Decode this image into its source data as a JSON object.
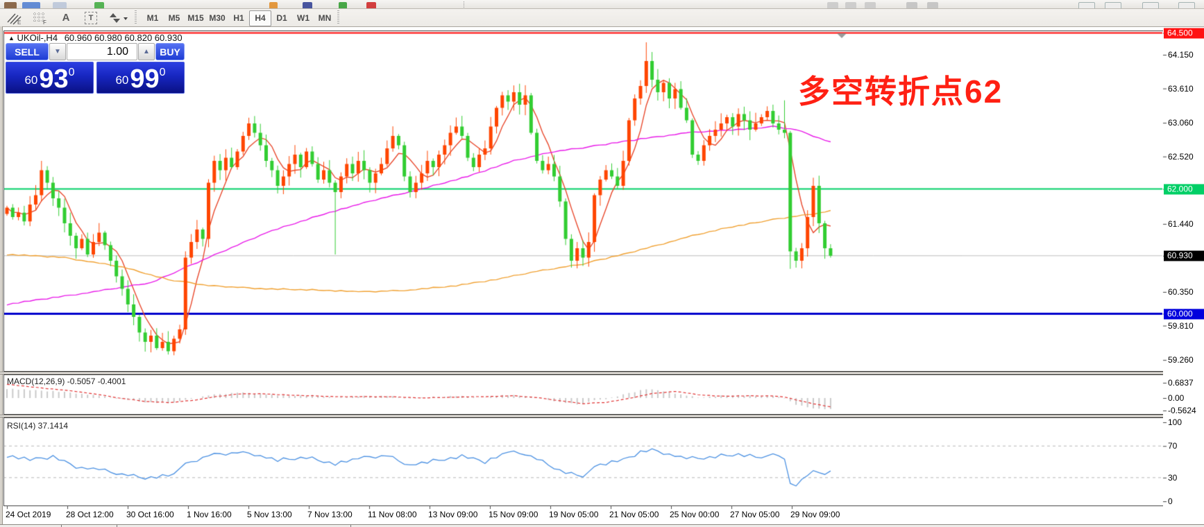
{
  "toolbar": {
    "tools": [
      {
        "name": "elliott-lines-icon"
      },
      {
        "name": "fibo-grid-icon"
      },
      {
        "name": "text-label-icon",
        "glyph": "A"
      },
      {
        "name": "text-box-icon",
        "glyph": "T"
      },
      {
        "name": "arrows-icon"
      }
    ],
    "timeframes": [
      "M1",
      "M5",
      "M15",
      "M30",
      "H1",
      "H4",
      "D1",
      "W1",
      "MN"
    ],
    "active_timeframe": "H4"
  },
  "chart": {
    "marker": "▲",
    "title": "UKOil-,H4",
    "ohlc_text": "60.960 60.980 60.820 60.930",
    "annotation": "多空转折点62",
    "annotation_color": "#ff2013",
    "trade_panel": {
      "sell_label": "SELL",
      "buy_label": "BUY",
      "volume": "1.00",
      "spin_down": "▼",
      "spin_up": "▲",
      "sell_price_small": "60",
      "sell_price_big": "93",
      "sell_price_sup": "0",
      "buy_price_small": "60",
      "buy_price_big": "99",
      "buy_price_sup": "0"
    },
    "indicator_labels": {
      "macd": "MACD(12,26,9) -0.5057 -0.4001",
      "rsi": "RSI(14) 37.1414"
    }
  },
  "chart_data": {
    "type": "candlestick",
    "symbol": "UKOil-",
    "timeframe": "H4",
    "ohlc_display": {
      "open": 60.96,
      "high": 60.98,
      "low": 60.82,
      "close": 60.93
    },
    "up_color": "#ff4500",
    "down_color": "#32cd32",
    "first_open": 61.6,
    "closes": [
      61.7,
      61.55,
      61.62,
      61.48,
      61.75,
      61.9,
      62.3,
      62.1,
      61.85,
      61.7,
      61.45,
      61.25,
      61.05,
      61.2,
      60.95,
      61.15,
      61.3,
      61.1,
      60.85,
      60.6,
      60.4,
      60.15,
      59.95,
      59.7,
      59.55,
      59.65,
      59.45,
      59.55,
      59.4,
      59.6,
      59.75,
      60.9,
      61.15,
      61.35,
      61.2,
      62.1,
      62.45,
      62.3,
      62.5,
      62.35,
      62.6,
      62.85,
      63.05,
      62.9,
      62.7,
      62.45,
      62.3,
      62.05,
      62.2,
      62.4,
      62.55,
      62.35,
      62.6,
      62.4,
      62.15,
      62.3,
      62.1,
      61.95,
      62.2,
      62.4,
      62.25,
      62.45,
      62.3,
      62.1,
      62.25,
      62.4,
      62.65,
      62.85,
      62.7,
      62.2,
      61.95,
      62.1,
      62.25,
      62.45,
      62.35,
      62.55,
      62.7,
      62.9,
      63.0,
      62.85,
      62.5,
      62.35,
      62.55,
      62.65,
      63.0,
      63.3,
      63.5,
      63.4,
      63.55,
      63.35,
      63.5,
      62.9,
      62.45,
      62.3,
      62.4,
      62.2,
      61.8,
      61.2,
      60.85,
      61.05,
      60.9,
      61.15,
      61.9,
      62.15,
      62.3,
      62.2,
      62.05,
      62.45,
      63.1,
      63.45,
      63.65,
      64.05,
      63.75,
      63.55,
      63.7,
      63.45,
      63.6,
      63.3,
      63.1,
      62.55,
      62.45,
      62.7,
      62.85,
      62.95,
      63.05,
      63.15,
      63.0,
      63.2,
      63.1,
      62.95,
      63.05,
      63.15,
      63.25,
      63.05,
      62.95,
      62.9,
      61.0,
      60.85,
      61.05,
      61.55,
      62.05,
      61.45,
      61.05,
      60.93
    ],
    "wick_overrides": {
      "6": {
        "h": 62.45
      },
      "57": {
        "l": 60.95
      },
      "111": {
        "h": 64.35
      },
      "135": {
        "h": 63.42
      },
      "136": {
        "l": 60.72
      },
      "140": {
        "h": 62.18
      }
    },
    "h_lines": [
      {
        "price": 64.5,
        "color": "#ff0000",
        "width": 2
      },
      {
        "price": 62.0,
        "color": "#00cf66",
        "width": 2
      },
      {
        "price": 60.93,
        "color": "#bdbdbd",
        "width": 1
      },
      {
        "price": 60.0,
        "color": "#0000cc",
        "width": 3
      }
    ],
    "price_ticks": [
      {
        "label": "64.500",
        "price": 64.5,
        "badge": "#ff1212"
      },
      {
        "label": "64.150",
        "price": 64.15
      },
      {
        "label": "63.610",
        "price": 63.61
      },
      {
        "label": "63.060",
        "price": 63.06
      },
      {
        "label": "62.520",
        "price": 62.52
      },
      {
        "label": "62.000",
        "price": 62.0,
        "badge": "#00cf66"
      },
      {
        "label": "61.440",
        "price": 61.44
      },
      {
        "label": "60.930",
        "price": 60.93,
        "badge": "#000000"
      },
      {
        "label": "60.350",
        "price": 60.35
      },
      {
        "label": "60.000",
        "price": 60.0,
        "badge": "#0000dd"
      },
      {
        "label": "59.810",
        "price": 59.81
      },
      {
        "label": "59.260",
        "price": 59.26
      }
    ],
    "ma_lines": [
      {
        "name": "ma-fast",
        "color": "#e8482c",
        "mode": "sma",
        "period": 5
      },
      {
        "name": "ma-mid",
        "color": "#e818e8",
        "mode": "points",
        "points": [
          [
            0,
            60.15
          ],
          [
            15,
            60.35
          ],
          [
            25,
            60.5
          ],
          [
            35,
            60.9
          ],
          [
            45,
            61.3
          ],
          [
            55,
            61.6
          ],
          [
            65,
            61.85
          ],
          [
            72,
            62.0
          ],
          [
            80,
            62.2
          ],
          [
            88,
            62.45
          ],
          [
            95,
            62.6
          ],
          [
            103,
            62.7
          ],
          [
            110,
            62.8
          ],
          [
            118,
            62.9
          ],
          [
            126,
            62.95
          ],
          [
            133,
            63.0
          ],
          [
            137,
            62.95
          ],
          [
            140,
            62.85
          ],
          [
            143,
            62.75
          ]
        ]
      },
      {
        "name": "ma-slow",
        "color": "#f0a030",
        "mode": "points",
        "points": [
          [
            0,
            60.95
          ],
          [
            10,
            60.9
          ],
          [
            20,
            60.75
          ],
          [
            28,
            60.55
          ],
          [
            35,
            60.45
          ],
          [
            45,
            60.4
          ],
          [
            55,
            60.38
          ],
          [
            62,
            60.35
          ],
          [
            70,
            60.38
          ],
          [
            78,
            60.45
          ],
          [
            85,
            60.55
          ],
          [
            92,
            60.68
          ],
          [
            100,
            60.8
          ],
          [
            107,
            60.95
          ],
          [
            113,
            61.1
          ],
          [
            119,
            61.25
          ],
          [
            125,
            61.38
          ],
          [
            131,
            61.48
          ],
          [
            136,
            61.55
          ],
          [
            140,
            61.6
          ],
          [
            143,
            61.65
          ]
        ]
      }
    ],
    "macd": {
      "params": "12,26,9",
      "value": -0.5057,
      "signal_value": -0.4001,
      "axis": [
        {
          "label": "0.6837",
          "value": 0.6837
        },
        {
          "label": "0.00",
          "value": 0
        },
        {
          "label": "-0.5624",
          "value": -0.5624
        }
      ],
      "hist_keypoints": [
        [
          0,
          0.42
        ],
        [
          4,
          0.35
        ],
        [
          8,
          0.3
        ],
        [
          12,
          0.22
        ],
        [
          16,
          0.1
        ],
        [
          20,
          -0.05
        ],
        [
          24,
          -0.18
        ],
        [
          28,
          -0.22
        ],
        [
          31,
          -0.1
        ],
        [
          35,
          0.12
        ],
        [
          40,
          0.25
        ],
        [
          44,
          0.2
        ],
        [
          48,
          0.1
        ],
        [
          53,
          0.12
        ],
        [
          57,
          0.02
        ],
        [
          62,
          0.08
        ],
        [
          66,
          0.1
        ],
        [
          70,
          -0.02
        ],
        [
          74,
          0.04
        ],
        [
          78,
          0.1
        ],
        [
          82,
          0.0
        ],
        [
          86,
          0.12
        ],
        [
          90,
          0.1
        ],
        [
          93,
          -0.02
        ],
        [
          96,
          -0.18
        ],
        [
          99,
          -0.28
        ],
        [
          102,
          -0.12
        ],
        [
          105,
          0.0
        ],
        [
          108,
          0.22
        ],
        [
          111,
          0.4
        ],
        [
          114,
          0.32
        ],
        [
          117,
          0.15
        ],
        [
          120,
          0.02
        ],
        [
          123,
          0.08
        ],
        [
          126,
          0.14
        ],
        [
          129,
          0.1
        ],
        [
          132,
          0.1
        ],
        [
          135,
          0.0
        ],
        [
          137,
          -0.3
        ],
        [
          139,
          -0.42
        ],
        [
          141,
          -0.48
        ],
        [
          143,
          -0.5057
        ]
      ],
      "signal_keypoints": [
        [
          0,
          0.62
        ],
        [
          4,
          0.5
        ],
        [
          8,
          0.4
        ],
        [
          12,
          0.3
        ],
        [
          16,
          0.15
        ],
        [
          20,
          -0.02
        ],
        [
          24,
          -0.15
        ],
        [
          28,
          -0.2
        ],
        [
          32,
          -0.12
        ],
        [
          36,
          0.05
        ],
        [
          40,
          0.18
        ],
        [
          44,
          0.2
        ],
        [
          48,
          0.14
        ],
        [
          53,
          0.1
        ],
        [
          58,
          0.06
        ],
        [
          63,
          0.06
        ],
        [
          68,
          0.05
        ],
        [
          72,
          0.0
        ],
        [
          76,
          0.03
        ],
        [
          80,
          0.05
        ],
        [
          84,
          0.07
        ],
        [
          88,
          0.1
        ],
        [
          92,
          0.02
        ],
        [
          96,
          -0.12
        ],
        [
          100,
          -0.25
        ],
        [
          104,
          -0.2
        ],
        [
          108,
          -0.02
        ],
        [
          112,
          0.2
        ],
        [
          116,
          0.3
        ],
        [
          120,
          0.15
        ],
        [
          124,
          0.08
        ],
        [
          128,
          0.1
        ],
        [
          132,
          0.1
        ],
        [
          135,
          0.05
        ],
        [
          138,
          -0.15
        ],
        [
          141,
          -0.3
        ],
        [
          143,
          -0.4001
        ]
      ]
    },
    "rsi": {
      "period": 14,
      "value": 37.1414,
      "levels": [
        70,
        30
      ],
      "axis": [
        {
          "label": "100",
          "value": 100
        },
        {
          "label": "70",
          "value": 70
        },
        {
          "label": "30",
          "value": 30
        },
        {
          "label": "0",
          "value": 0
        }
      ],
      "keypoints": [
        [
          0,
          58
        ],
        [
          4,
          52
        ],
        [
          8,
          56
        ],
        [
          12,
          44
        ],
        [
          16,
          40
        ],
        [
          20,
          34
        ],
        [
          24,
          30
        ],
        [
          28,
          33
        ],
        [
          31,
          46
        ],
        [
          35,
          58
        ],
        [
          40,
          62
        ],
        [
          43,
          60
        ],
        [
          47,
          52
        ],
        [
          52,
          56
        ],
        [
          57,
          48
        ],
        [
          61,
          54
        ],
        [
          66,
          58
        ],
        [
          70,
          46
        ],
        [
          75,
          52
        ],
        [
          79,
          57
        ],
        [
          83,
          50
        ],
        [
          87,
          62
        ],
        [
          90,
          60
        ],
        [
          93,
          50
        ],
        [
          97,
          36
        ],
        [
          100,
          33
        ],
        [
          103,
          46
        ],
        [
          107,
          52
        ],
        [
          110,
          62
        ],
        [
          112,
          65
        ],
        [
          115,
          60
        ],
        [
          118,
          54
        ],
        [
          121,
          55
        ],
        [
          124,
          58
        ],
        [
          127,
          60
        ],
        [
          130,
          57
        ],
        [
          133,
          58
        ],
        [
          135,
          55
        ],
        [
          136,
          22
        ],
        [
          137,
          20
        ],
        [
          138,
          26
        ],
        [
          139,
          32
        ],
        [
          140,
          41
        ],
        [
          141,
          36
        ],
        [
          142,
          35
        ],
        [
          143,
          37.14
        ]
      ]
    },
    "time_labels": [
      "24 Oct 2019",
      "28 Oct 12:00",
      "30 Oct 16:00",
      "1 Nov 16:00",
      "5 Nov 13:00",
      "7 Nov 13:00",
      "11 Nov 08:00",
      "13 Nov 09:00",
      "15 Nov 09:00",
      "19 Nov 05:00",
      "21 Nov 05:00",
      "25 Nov 00:00",
      "27 Nov 05:00",
      "29 Nov 09:00"
    ]
  }
}
